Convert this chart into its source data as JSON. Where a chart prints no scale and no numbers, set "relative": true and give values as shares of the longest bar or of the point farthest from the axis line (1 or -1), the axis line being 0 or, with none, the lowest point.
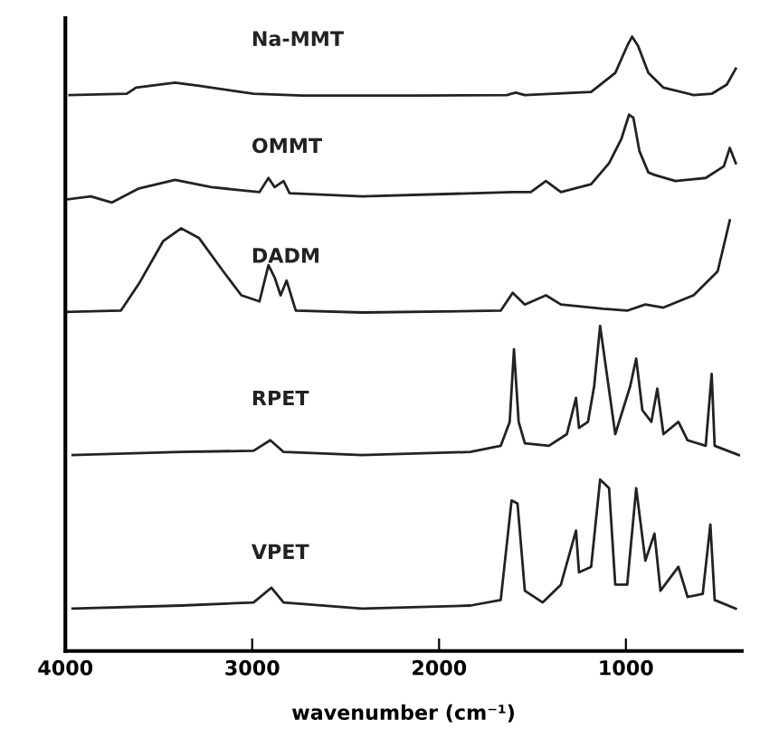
{
  "chart_data": {
    "type": "line",
    "relative": true,
    "xlabel": "wavenumber (cm⁻¹)",
    "xlim": [
      4000,
      380
    ],
    "xticks": [
      4000,
      3000,
      2000,
      1000
    ],
    "grid": false,
    "legend": false,
    "marker": "none",
    "line_style": "solid",
    "series": [
      {
        "name": "Na-MMT",
        "color": "#222222",
        "x": [
          3977,
          3671,
          3622,
          3413,
          3284,
          2993,
          2735,
          2090,
          1638,
          1590,
          1541,
          1186,
          1057,
          993,
          967,
          935,
          880,
          799,
          638,
          541,
          460,
          412
        ],
        "values": [
          0.905,
          0.907,
          0.917,
          0.925,
          0.92,
          0.907,
          0.904,
          0.904,
          0.905,
          0.909,
          0.905,
          0.91,
          0.941,
          0.985,
          1,
          0.985,
          0.941,
          0.917,
          0.905,
          0.907,
          0.922,
          0.948
        ]
      },
      {
        "name": "OMMT",
        "color": "#222222",
        "x": [
          3994,
          3864,
          3752,
          3606,
          3413,
          3219,
          2961,
          2913,
          2880,
          2832,
          2800,
          2412,
          1606,
          1509,
          1428,
          1348,
          1186,
          1090,
          1025,
          983,
          960,
          928,
          880,
          847,
          735,
          573,
          476,
          444,
          412
        ],
        "values": [
          0.735,
          0.74,
          0.73,
          0.753,
          0.767,
          0.755,
          0.747,
          0.77,
          0.755,
          0.765,
          0.745,
          0.74,
          0.747,
          0.747,
          0.765,
          0.747,
          0.76,
          0.794,
          0.833,
          0.873,
          0.868,
          0.814,
          0.779,
          0.775,
          0.765,
          0.77,
          0.789,
          0.819,
          0.794
        ]
      },
      {
        "name": "DADM",
        "color": "#222222",
        "x": [
          3994,
          3703,
          3606,
          3477,
          3380,
          3284,
          3155,
          3058,
          2961,
          2913,
          2880,
          2848,
          2816,
          2767,
          2412,
          1670,
          1606,
          1541,
          1428,
          1348,
          1122,
          993,
          896,
          799,
          638,
          509,
          444
        ],
        "values": [
          0.552,
          0.554,
          0.598,
          0.667,
          0.688,
          0.672,
          0.618,
          0.579,
          0.569,
          0.628,
          0.608,
          0.579,
          0.603,
          0.554,
          0.551,
          0.554,
          0.583,
          0.564,
          0.579,
          0.564,
          0.557,
          0.554,
          0.564,
          0.559,
          0.579,
          0.618,
          0.701
        ]
      },
      {
        "name": "RPET",
        "color": "#222222",
        "x": [
          3961,
          3380,
          2993,
          2903,
          2832,
          2412,
          1832,
          1670,
          1622,
          1599,
          1574,
          1541,
          1412,
          1316,
          1267,
          1251,
          1203,
          1170,
          1138,
          1057,
          977,
          945,
          912,
          864,
          832,
          799,
          719,
          670,
          573,
          541,
          525,
          396
        ],
        "values": [
          0.319,
          0.324,
          0.326,
          0.343,
          0.324,
          0.319,
          0.324,
          0.334,
          0.373,
          0.491,
          0.373,
          0.338,
          0.334,
          0.353,
          0.412,
          0.363,
          0.373,
          0.431,
          0.529,
          0.353,
          0.431,
          0.476,
          0.392,
          0.373,
          0.427,
          0.353,
          0.373,
          0.343,
          0.334,
          0.451,
          0.334,
          0.319
        ]
      },
      {
        "name": "VPET",
        "color": "#222222",
        "x": [
          3961,
          3380,
          2993,
          2897,
          2832,
          2412,
          1832,
          1670,
          1612,
          1580,
          1541,
          1445,
          1348,
          1267,
          1251,
          1186,
          1138,
          1090,
          1057,
          993,
          945,
          896,
          847,
          815,
          719,
          670,
          589,
          548,
          525,
          412
        ],
        "values": [
          0.069,
          0.074,
          0.079,
          0.103,
          0.079,
          0.069,
          0.074,
          0.083,
          0.245,
          0.24,
          0.098,
          0.079,
          0.108,
          0.196,
          0.128,
          0.137,
          0.279,
          0.265,
          0.108,
          0.108,
          0.265,
          0.147,
          0.191,
          0.098,
          0.137,
          0.088,
          0.093,
          0.206,
          0.083,
          0.069
        ]
      }
    ]
  }
}
